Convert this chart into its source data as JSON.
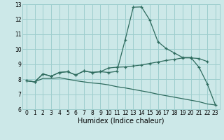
{
  "x": [
    0,
    1,
    2,
    3,
    4,
    5,
    6,
    7,
    8,
    9,
    10,
    11,
    12,
    13,
    14,
    15,
    16,
    17,
    18,
    19,
    20,
    21,
    22,
    23
  ],
  "line1": [
    7.9,
    7.82,
    8.35,
    8.2,
    8.45,
    8.5,
    8.28,
    8.55,
    8.45,
    8.5,
    8.45,
    8.52,
    10.6,
    12.8,
    12.82,
    11.95,
    10.5,
    10.05,
    9.75,
    9.45,
    9.45,
    8.8,
    7.7,
    6.28
  ],
  "line2": [
    7.9,
    7.82,
    8.35,
    8.2,
    8.45,
    8.5,
    8.28,
    8.55,
    8.45,
    8.5,
    8.75,
    8.8,
    8.82,
    8.88,
    8.95,
    9.05,
    9.15,
    9.25,
    9.32,
    9.42,
    9.42,
    9.38,
    9.18,
    null
  ],
  "line3": [
    7.9,
    7.82,
    8.05,
    8.05,
    8.1,
    8.0,
    7.9,
    7.82,
    7.75,
    7.7,
    7.62,
    7.5,
    7.42,
    7.32,
    7.22,
    7.12,
    7.0,
    6.9,
    6.8,
    6.7,
    6.6,
    6.5,
    6.35,
    6.28
  ],
  "color": "#2e6b5e",
  "bg_color": "#cce8e8",
  "grid_color": "#9ecece",
  "xlabel": "Humidex (Indice chaleur)",
  "xlim_min": -0.5,
  "xlim_max": 23.5,
  "ylim": [
    6,
    13
  ],
  "yticks": [
    6,
    7,
    8,
    9,
    10,
    11,
    12,
    13
  ],
  "xticks": [
    0,
    1,
    2,
    3,
    4,
    5,
    6,
    7,
    8,
    9,
    10,
    11,
    12,
    13,
    14,
    15,
    16,
    17,
    18,
    19,
    20,
    21,
    22,
    23
  ],
  "xlabel_fontsize": 7,
  "tick_fontsize": 5.5,
  "linewidth": 0.9,
  "markersize": 3.0
}
